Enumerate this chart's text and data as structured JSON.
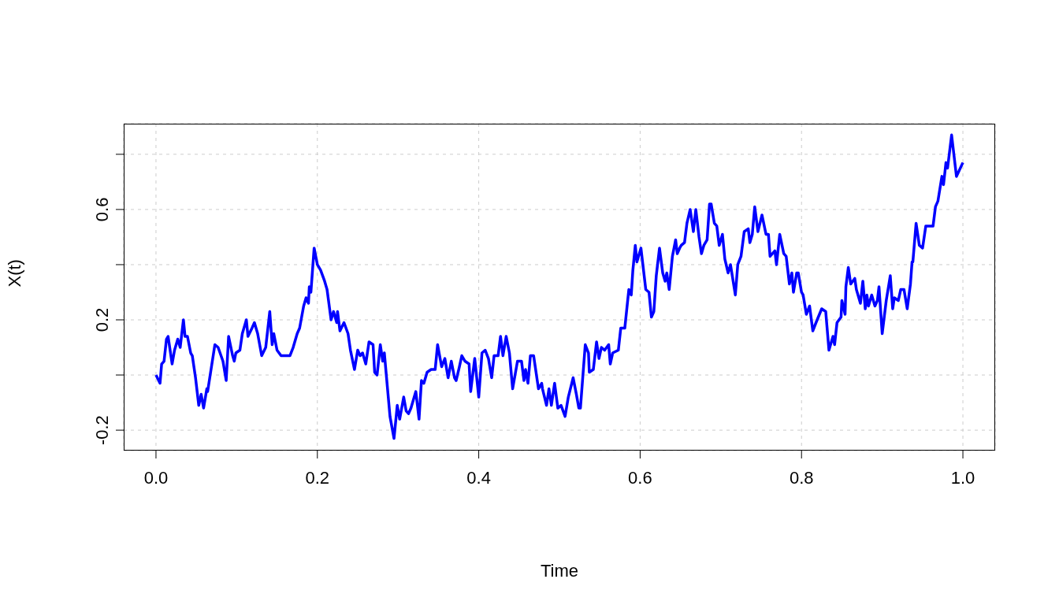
{
  "chart_data": {
    "type": "line",
    "xlabel": "Time",
    "ylabel": "X(t)",
    "xlim": [
      -0.04,
      1.04
    ],
    "ylim": [
      -0.274,
      0.911
    ],
    "xticks": [
      {
        "value": 0,
        "label": "0.0"
      },
      {
        "value": 0.2,
        "label": "0.2"
      },
      {
        "value": 0.4,
        "label": "0.4"
      },
      {
        "value": 0.6,
        "label": "0.6"
      },
      {
        "value": 0.8,
        "label": "0.8"
      },
      {
        "value": 1,
        "label": "1.0"
      }
    ],
    "yticks": [
      {
        "value": -0.2,
        "label": "-0.2"
      },
      {
        "value": 0,
        "label": null
      },
      {
        "value": 0.2,
        "label": "0.2"
      },
      {
        "value": 0.4,
        "label": null
      },
      {
        "value": 0.6,
        "label": "0.6"
      },
      {
        "value": 0.8,
        "label": null
      }
    ],
    "grid": true,
    "marker": "none",
    "line_style": "solid",
    "series": [
      {
        "color": "#0000ff",
        "x": [
          0,
          0.005,
          0.007,
          0.01,
          0.013,
          0.015,
          0.02,
          0.023,
          0.027,
          0.03,
          0.034,
          0.036,
          0.039,
          0.043,
          0.045,
          0.049,
          0.053,
          0.056,
          0.059,
          0.063,
          0.064,
          0.073,
          0.077,
          0.083,
          0.087,
          0.09,
          0.095,
          0.097,
          0.099,
          0.104,
          0.107,
          0.112,
          0.114,
          0.119,
          0.122,
          0.126,
          0.131,
          0.136,
          0.141,
          0.144,
          0.146,
          0.15,
          0.155,
          0.161,
          0.166,
          0.17,
          0.175,
          0.178,
          0.183,
          0.186,
          0.189,
          0.19,
          0.192,
          0.196,
          0.2,
          0.204,
          0.209,
          0.212,
          0.217,
          0.22,
          0.224,
          0.225,
          0.228,
          0.233,
          0.238,
          0.241,
          0.246,
          0.25,
          0.253,
          0.256,
          0.26,
          0.264,
          0.269,
          0.271,
          0.274,
          0.278,
          0.281,
          0.283,
          0.29,
          0.295,
          0.299,
          0.302,
          0.307,
          0.31,
          0.313,
          0.316,
          0.319,
          0.322,
          0.326,
          0.329,
          0.332,
          0.336,
          0.341,
          0.346,
          0.349,
          0.354,
          0.358,
          0.362,
          0.366,
          0.37,
          0.372,
          0.376,
          0.379,
          0.383,
          0.388,
          0.39,
          0.395,
          0.4,
          0.404,
          0.408,
          0.412,
          0.416,
          0.419,
          0.424,
          0.427,
          0.43,
          0.434,
          0.438,
          0.442,
          0.448,
          0.453,
          0.456,
          0.458,
          0.461,
          0.464,
          0.468,
          0.474,
          0.478,
          0.479,
          0.484,
          0.487,
          0.49,
          0.494,
          0.498,
          0.502,
          0.507,
          0.511,
          0.517,
          0.521,
          0.524,
          0.526,
          0.532,
          0.536,
          0.537,
          0.542,
          0.546,
          0.549,
          0.552,
          0.556,
          0.561,
          0.563,
          0.566,
          0.573,
          0.576,
          0.581,
          0.586,
          0.589,
          0.591,
          0.594,
          0.596,
          0.601,
          0.607,
          0.611,
          0.614,
          0.617,
          0.62,
          0.624,
          0.628,
          0.631,
          0.633,
          0.636,
          0.64,
          0.644,
          0.646,
          0.649,
          0.651,
          0.655,
          0.658,
          0.662,
          0.666,
          0.669,
          0.673,
          0.676,
          0.679,
          0.683,
          0.686,
          0.688,
          0.692,
          0.695,
          0.698,
          0.702,
          0.705,
          0.709,
          0.712,
          0.718,
          0.721,
          0.725,
          0.729,
          0.734,
          0.736,
          0.739,
          0.742,
          0.746,
          0.751,
          0.756,
          0.759,
          0.761,
          0.767,
          0.769,
          0.773,
          0.778,
          0.781,
          0.785,
          0.788,
          0.79,
          0.794,
          0.796,
          0.8,
          0.802,
          0.806,
          0.81,
          0.814,
          0.818,
          0.825,
          0.83,
          0.834,
          0.839,
          0.841,
          0.844,
          0.849,
          0.85,
          0.854,
          0.855,
          0.858,
          0.861,
          0.866,
          0.868,
          0.873,
          0.876,
          0.879,
          0.881,
          0.883,
          0.887,
          0.891,
          0.894,
          0.896,
          0.9,
          0.905,
          0.91,
          0.913,
          0.915,
          0.92,
          0.923,
          0.927,
          0.931,
          0.935,
          0.937,
          0.938,
          0.942,
          0.946,
          0.95,
          0.954,
          0.958,
          0.963,
          0.966,
          0.969,
          0.974,
          0.976,
          0.979,
          0.981,
          0.986,
          0.992,
          1.0
        ],
        "values": [
          0,
          -0.03,
          0.04,
          0.05,
          0.13,
          0.14,
          0.04,
          0.09,
          0.13,
          0.1,
          0.2,
          0.14,
          0.14,
          0.08,
          0.07,
          -0.01,
          -0.11,
          -0.07,
          -0.12,
          -0.05,
          -0.06,
          0.11,
          0.1,
          0.05,
          -0.02,
          0.14,
          0.07,
          0.05,
          0.08,
          0.09,
          0.15,
          0.2,
          0.14,
          0.17,
          0.19,
          0.15,
          0.07,
          0.1,
          0.23,
          0.11,
          0.15,
          0.09,
          0.07,
          0.07,
          0.07,
          0.1,
          0.15,
          0.17,
          0.25,
          0.28,
          0.26,
          0.32,
          0.3,
          0.46,
          0.4,
          0.38,
          0.34,
          0.31,
          0.2,
          0.23,
          0.19,
          0.23,
          0.16,
          0.19,
          0.15,
          0.09,
          0.02,
          0.09,
          0.07,
          0.08,
          0.04,
          0.12,
          0.11,
          0.01,
          0.0,
          0.11,
          0.05,
          0.08,
          -0.15,
          -0.23,
          -0.11,
          -0.16,
          -0.08,
          -0.13,
          -0.14,
          -0.12,
          -0.09,
          -0.06,
          -0.16,
          -0.02,
          -0.03,
          0.01,
          0.02,
          0.02,
          0.11,
          0.03,
          0.06,
          -0.01,
          0.05,
          -0.01,
          -0.02,
          0.03,
          0.07,
          0.05,
          0.04,
          -0.06,
          0.06,
          -0.08,
          0.08,
          0.09,
          0.06,
          -0.01,
          0.07,
          0.07,
          0.14,
          0.07,
          0.14,
          0.08,
          -0.05,
          0.05,
          0.05,
          -0.02,
          0.02,
          -0.03,
          0.07,
          0.07,
          -0.05,
          -0.03,
          -0.05,
          -0.11,
          -0.05,
          -0.11,
          -0.03,
          -0.12,
          -0.11,
          -0.15,
          -0.08,
          -0.01,
          -0.07,
          -0.12,
          -0.12,
          0.11,
          0.08,
          0.01,
          0.02,
          0.12,
          0.06,
          0.1,
          0.09,
          0.11,
          0.04,
          0.08,
          0.09,
          0.17,
          0.17,
          0.31,
          0.29,
          0.38,
          0.47,
          0.41,
          0.46,
          0.31,
          0.3,
          0.21,
          0.23,
          0.36,
          0.46,
          0.37,
          0.34,
          0.37,
          0.31,
          0.43,
          0.49,
          0.44,
          0.46,
          0.47,
          0.48,
          0.55,
          0.6,
          0.52,
          0.6,
          0.5,
          0.44,
          0.47,
          0.49,
          0.62,
          0.62,
          0.55,
          0.54,
          0.47,
          0.51,
          0.42,
          0.37,
          0.4,
          0.29,
          0.4,
          0.43,
          0.52,
          0.53,
          0.48,
          0.51,
          0.61,
          0.52,
          0.58,
          0.51,
          0.51,
          0.43,
          0.45,
          0.4,
          0.51,
          0.44,
          0.43,
          0.33,
          0.37,
          0.3,
          0.37,
          0.37,
          0.3,
          0.29,
          0.22,
          0.25,
          0.16,
          0.19,
          0.24,
          0.23,
          0.09,
          0.14,
          0.11,
          0.19,
          0.21,
          0.27,
          0.22,
          0.32,
          0.39,
          0.33,
          0.35,
          0.31,
          0.26,
          0.34,
          0.24,
          0.29,
          0.25,
          0.29,
          0.25,
          0.27,
          0.32,
          0.15,
          0.27,
          0.36,
          0.24,
          0.28,
          0.27,
          0.31,
          0.31,
          0.24,
          0.33,
          0.41,
          0.41,
          0.55,
          0.47,
          0.46,
          0.54,
          0.54,
          0.54,
          0.61,
          0.63,
          0.72,
          0.69,
          0.77,
          0.75,
          0.87,
          0.72,
          0.77
        ]
      }
    ]
  }
}
